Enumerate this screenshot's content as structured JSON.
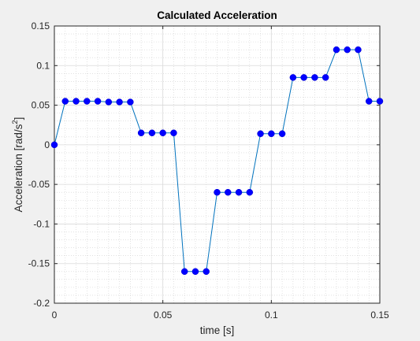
{
  "chart_data": {
    "type": "line",
    "title": "Calculated Acceleration",
    "xlabel": "time [s]",
    "ylabel_main": "Acceleration [rad/s",
    "ylabel_sup": "2",
    "ylabel_tail": "]",
    "xlim": [
      0,
      0.15
    ],
    "ylim": [
      -0.2,
      0.15
    ],
    "xticks": [
      0,
      0.05,
      0.1,
      0.15
    ],
    "xtick_labels": [
      "0",
      "0.05",
      "0.1",
      "0.15"
    ],
    "yticks": [
      -0.2,
      -0.15,
      -0.1,
      -0.05,
      0,
      0.05,
      0.1,
      0.15
    ],
    "ytick_labels": [
      "-0.2",
      "-0.15",
      "-0.1",
      "-0.05",
      "0",
      "0.05",
      "0.1",
      "0.15"
    ],
    "grid": true,
    "minor_grid": true,
    "legend": "none",
    "line_color": "#0072bd",
    "marker_color": "#0000ff",
    "series": [
      {
        "x": [
          0,
          0.005,
          0.01,
          0.015,
          0.02,
          0.025,
          0.03,
          0.035,
          0.04,
          0.045,
          0.05,
          0.055,
          0.06,
          0.065,
          0.07,
          0.075,
          0.08,
          0.085,
          0.09,
          0.095,
          0.1,
          0.105,
          0.11,
          0.115,
          0.12,
          0.125,
          0.13,
          0.135,
          0.14,
          0.145,
          0.15
        ],
        "values": [
          0,
          0.055,
          0.055,
          0.055,
          0.055,
          0.054,
          0.054,
          0.054,
          0.015,
          0.015,
          0.015,
          0.015,
          -0.16,
          -0.16,
          -0.16,
          -0.06,
          -0.06,
          -0.06,
          -0.06,
          0.014,
          0.014,
          0.014,
          0.085,
          0.085,
          0.085,
          0.085,
          0.12,
          0.12,
          0.12,
          0.055,
          0.055
        ]
      }
    ]
  }
}
